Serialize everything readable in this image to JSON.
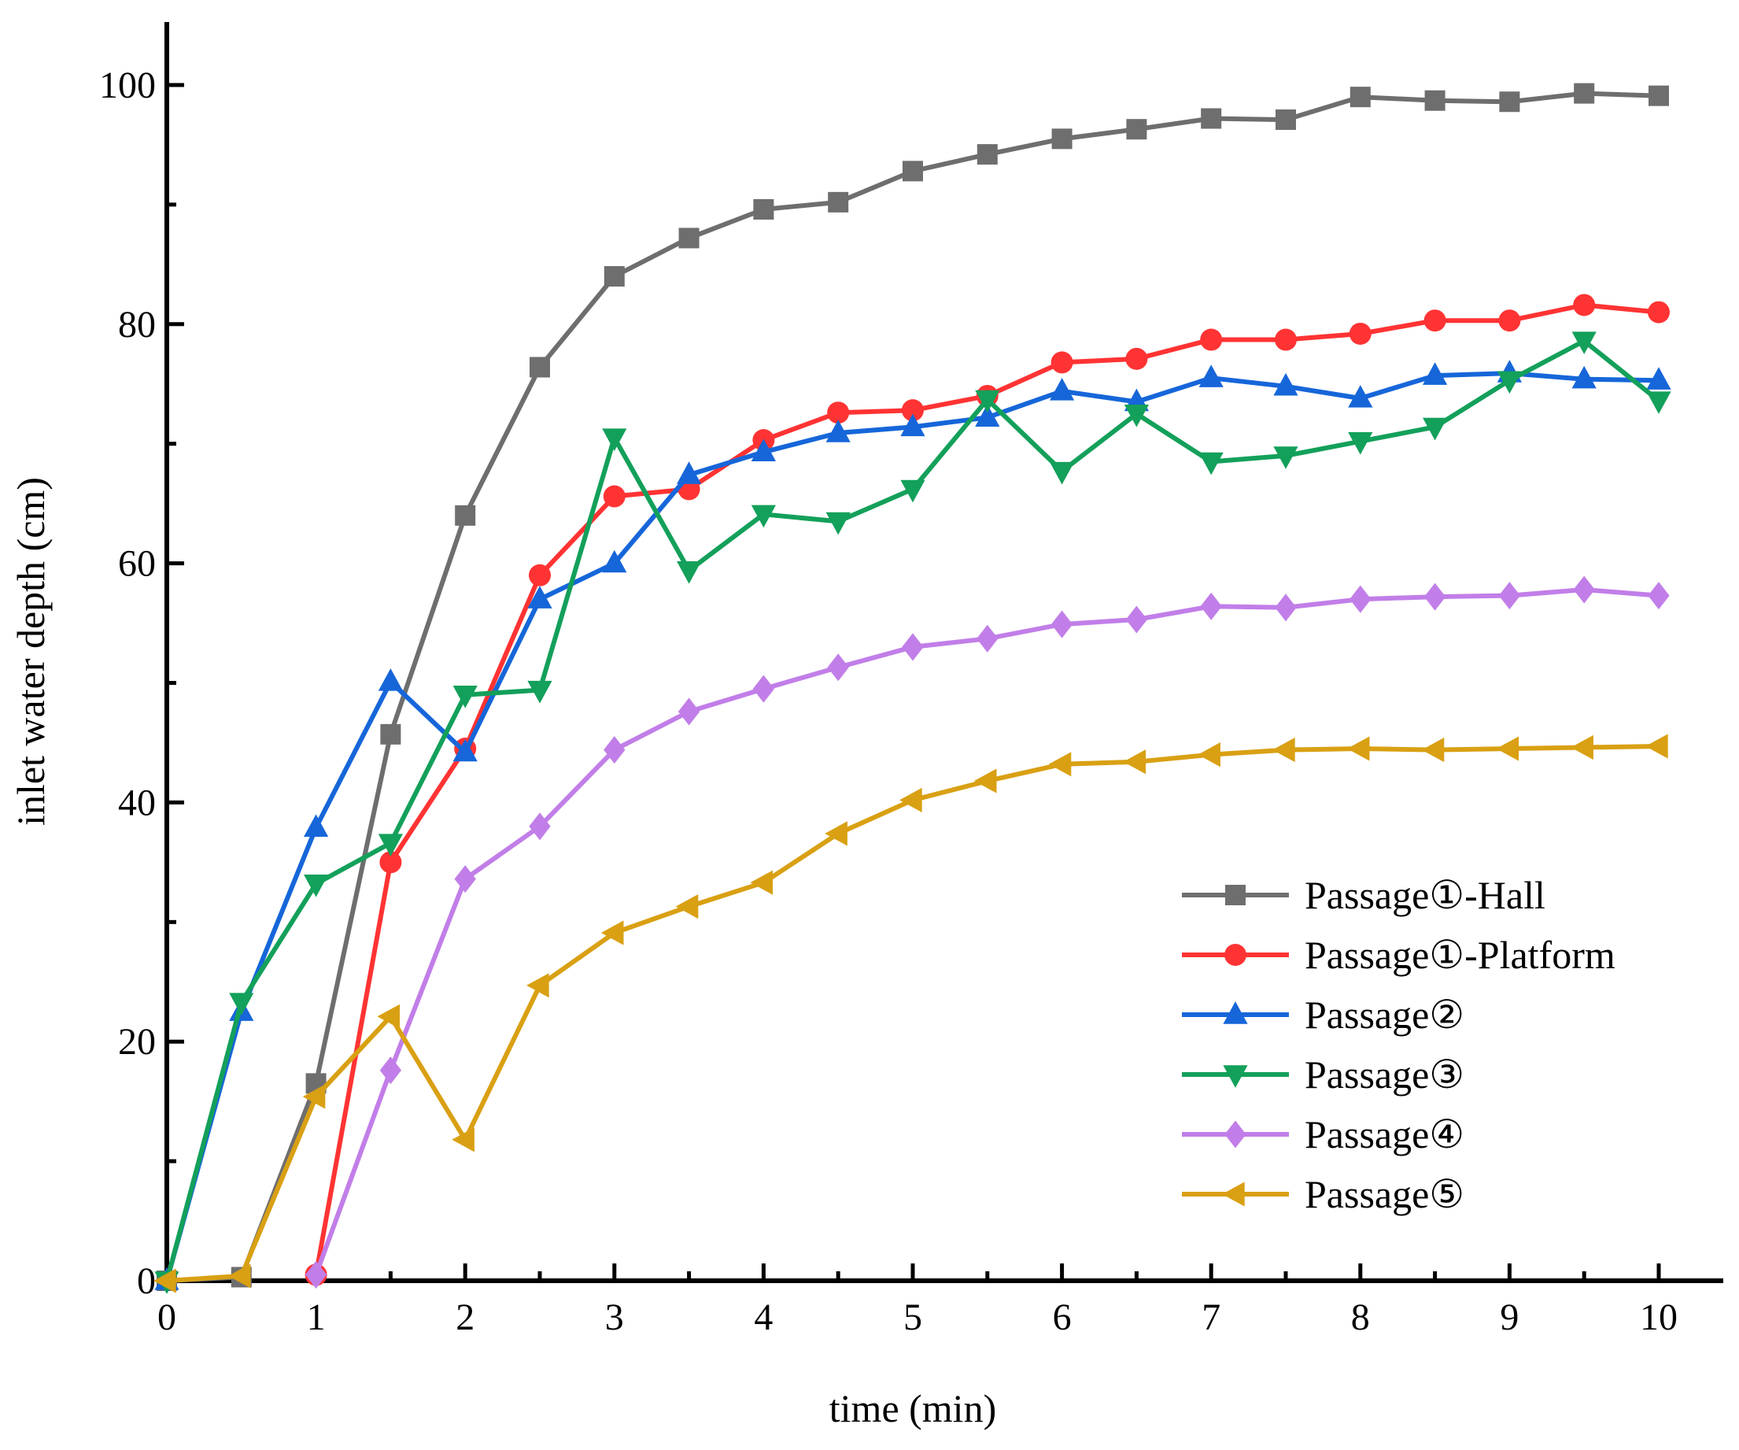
{
  "chart_data": {
    "type": "line",
    "title": "",
    "xlabel": "time (min)",
    "ylabel": "inlet water depth (cm)",
    "xlim": [
      0,
      10.4
    ],
    "ylim": [
      0,
      105
    ],
    "x_ticks": [
      0,
      1,
      2,
      3,
      4,
      5,
      6,
      7,
      8,
      9,
      10
    ],
    "y_ticks": [
      0,
      20,
      40,
      60,
      80,
      100
    ],
    "x_tick_labels": [
      "0",
      "1",
      "2",
      "3",
      "4",
      "5",
      "6",
      "7",
      "8",
      "9",
      "10"
    ],
    "y_tick_labels": [
      "0",
      "20",
      "40",
      "60",
      "80",
      "100"
    ],
    "grid": false,
    "legend_position": "bottom-right",
    "series": [
      {
        "name": "Passage①-Hall",
        "color": "#6e6e6e",
        "marker": "square",
        "x": [
          0,
          0.5,
          1,
          1.5,
          2,
          2.5,
          3,
          3.5,
          4,
          4.5,
          5,
          5.5,
          6,
          6.5,
          7,
          7.5,
          8,
          8.5,
          9,
          9.5,
          10
        ],
        "values": [
          0,
          0.3,
          16.5,
          45.7,
          64,
          76.4,
          84,
          87.2,
          89.6,
          90.2,
          92.8,
          94.2,
          95.5,
          96.3,
          97.2,
          97.1,
          99,
          98.7,
          98.6,
          99.3,
          99.1
        ]
      },
      {
        "name": "Passage①-Platform",
        "color": "#ff3333",
        "marker": "circle",
        "x": [
          1,
          1.5,
          2,
          2.5,
          3,
          3.5,
          4,
          4.5,
          5,
          5.5,
          6,
          6.5,
          7,
          7.5,
          8,
          8.5,
          9,
          9.5,
          10
        ],
        "values": [
          0.5,
          35,
          44.5,
          59,
          65.6,
          66.2,
          70.3,
          72.6,
          72.8,
          74,
          76.8,
          77.1,
          78.7,
          78.7,
          79.2,
          80.3,
          80.3,
          81.6,
          81
        ]
      },
      {
        "name": "Passage②",
        "color": "#1666d9",
        "marker": "triangle-up",
        "x": [
          0,
          0.5,
          1,
          1.5,
          2,
          2.5,
          3,
          3.5,
          4,
          4.5,
          5,
          5.5,
          6,
          6.5,
          7,
          7.5,
          8,
          8.5,
          9,
          9.5,
          10
        ],
        "values": [
          0,
          22.5,
          37.9,
          50.1,
          44.2,
          57,
          60,
          67.4,
          69.3,
          70.9,
          71.4,
          72.2,
          74.4,
          73.5,
          75.5,
          74.8,
          73.8,
          75.7,
          75.9,
          75.4,
          75.3
        ]
      },
      {
        "name": "Passage③",
        "color": "#13a05a",
        "marker": "triangle-down",
        "x": [
          0,
          0.5,
          1,
          1.5,
          2,
          2.5,
          3,
          3.5,
          4,
          4.5,
          5,
          5.5,
          6,
          6.5,
          7,
          7.5,
          8,
          8.5,
          9,
          9.5,
          10
        ],
        "values": [
          0,
          23.3,
          33.2,
          36.6,
          49,
          49.4,
          70.5,
          59.4,
          64.1,
          63.5,
          66.2,
          73.7,
          67.7,
          72.5,
          68.5,
          69,
          70.2,
          71.4,
          75.3,
          78.6,
          73.6
        ]
      },
      {
        "name": "Passage④",
        "color": "#c17ee8",
        "marker": "diamond",
        "x": [
          1,
          1.5,
          2,
          2.5,
          3,
          3.5,
          4,
          4.5,
          5,
          5.5,
          6,
          6.5,
          7,
          7.5,
          8,
          8.5,
          9,
          9.5,
          10
        ],
        "values": [
          0.5,
          17.6,
          33.6,
          38,
          44.4,
          47.6,
          49.5,
          51.3,
          53,
          53.7,
          54.9,
          55.3,
          56.4,
          56.3,
          57,
          57.2,
          57.3,
          57.8,
          57.3
        ]
      },
      {
        "name": "Passage⑤",
        "color": "#d9a013",
        "marker": "triangle-left",
        "x": [
          0,
          0.5,
          1,
          1.5,
          2,
          2.5,
          3,
          3.5,
          4,
          4.5,
          5,
          5.5,
          6,
          6.5,
          7,
          7.5,
          8,
          8.5,
          9,
          9.5,
          10
        ],
        "values": [
          0,
          0.4,
          15.4,
          22.1,
          11.8,
          24.7,
          29.1,
          31.3,
          33.3,
          37.4,
          40.2,
          41.8,
          43.2,
          43.4,
          44,
          44.4,
          44.5,
          44.4,
          44.5,
          44.6,
          44.7
        ]
      }
    ]
  }
}
